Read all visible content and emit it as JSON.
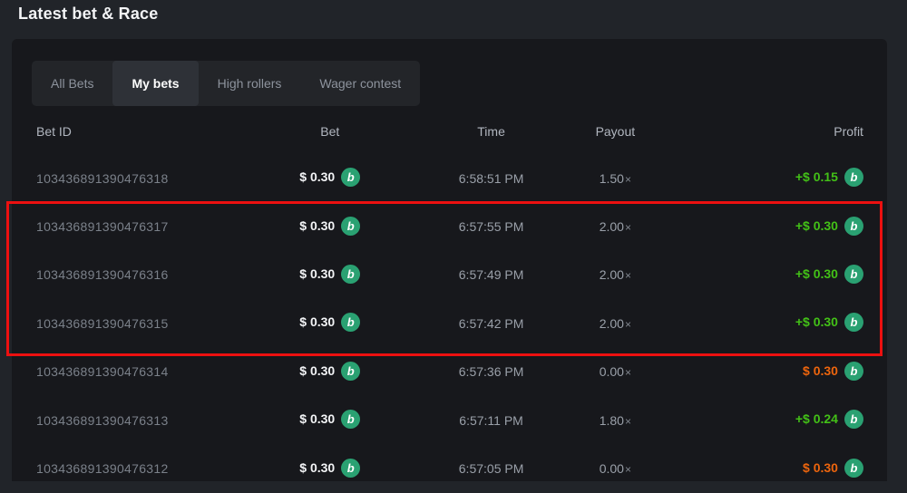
{
  "header": {
    "title": "Latest bet & Race"
  },
  "tabs": [
    {
      "id": "all-bets",
      "label": "All Bets",
      "active": false
    },
    {
      "id": "my-bets",
      "label": "My bets",
      "active": true
    },
    {
      "id": "high-rollers",
      "label": "High rollers",
      "active": false
    },
    {
      "id": "wager-contest",
      "label": "Wager contest",
      "active": false
    }
  ],
  "table": {
    "columns": [
      "Bet ID",
      "Bet",
      "Time",
      "Payout",
      "Profit"
    ],
    "times_symbol": "×",
    "rows": [
      {
        "bet_id": "103436891390476318",
        "bet": "$ 0.30",
        "time": "6:58:51 PM",
        "payout": "1.50",
        "profit": "+$ 0.15",
        "profit_type": "win",
        "highlighted": false
      },
      {
        "bet_id": "103436891390476317",
        "bet": "$ 0.30",
        "time": "6:57:55 PM",
        "payout": "2.00",
        "profit": "+$ 0.30",
        "profit_type": "win",
        "highlighted": true
      },
      {
        "bet_id": "103436891390476316",
        "bet": "$ 0.30",
        "time": "6:57:49 PM",
        "payout": "2.00",
        "profit": "+$ 0.30",
        "profit_type": "win",
        "highlighted": true
      },
      {
        "bet_id": "103436891390476315",
        "bet": "$ 0.30",
        "time": "6:57:42 PM",
        "payout": "2.00",
        "profit": "+$ 0.30",
        "profit_type": "win",
        "highlighted": true
      },
      {
        "bet_id": "103436891390476314",
        "bet": "$ 0.30",
        "time": "6:57:36 PM",
        "payout": "0.00",
        "profit": "$ 0.30",
        "profit_type": "loss",
        "highlighted": false
      },
      {
        "bet_id": "103436891390476313",
        "bet": "$ 0.30",
        "time": "6:57:11 PM",
        "payout": "1.80",
        "profit": "+$ 0.24",
        "profit_type": "win",
        "highlighted": false
      },
      {
        "bet_id": "103436891390476312",
        "bet": "$ 0.30",
        "time": "6:57:05 PM",
        "payout": "0.00",
        "profit": "$ 0.30",
        "profit_type": "loss",
        "highlighted": false
      }
    ]
  },
  "icons": {
    "coin_glyph": "b"
  },
  "annotation": {
    "shape": "rectangle",
    "purpose": "highlights rows 2-4"
  },
  "colors": {
    "win": "#43c117",
    "loss": "#ee650d",
    "coin": "#2aa172",
    "annotation": "#ec1010"
  }
}
